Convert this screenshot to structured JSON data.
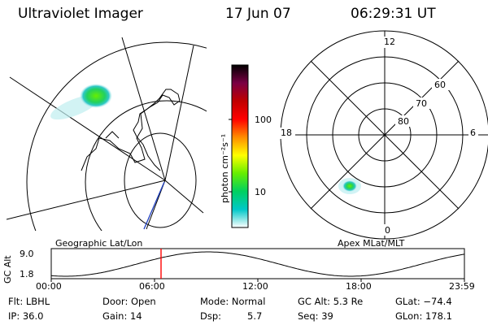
{
  "header": {
    "instrument": "Ultraviolet Imager",
    "date": "17 Jun 07",
    "time": "06:29:31 UT"
  },
  "left_panel": {
    "label": "Geographic Lat/Lon"
  },
  "right_panel": {
    "label": "Apex MLat/MLT",
    "mlt_labels": {
      "top": "12",
      "left": "18",
      "right": "6",
      "bottom": "0"
    },
    "lat_labels": [
      "60",
      "70",
      "80"
    ]
  },
  "colorbar": {
    "unit_label": "photon cm⁻²s⁻¹",
    "tick_labels": [
      "100",
      "10"
    ],
    "colors": [
      "#ffffff",
      "#00c8c8",
      "#00d060",
      "#66ee00",
      "#ffff00",
      "#ff8c00",
      "#ff0000",
      "#c00000",
      "#7a0044",
      "#000000"
    ]
  },
  "orbit": {
    "axis_label": "GC Alt",
    "y_labels": [
      "9.0",
      "1.8"
    ],
    "time_ticks": [
      "00:00",
      "06:00",
      "12:00",
      "18:00",
      "23:59"
    ],
    "marker_color": "#ff0000"
  },
  "info": {
    "filter": "Flt: LBHL",
    "door": "Door: Open",
    "mode": "Mode: Normal",
    "gc_alt": "GC Alt: 5.3 Re",
    "glat": "GLat: −74.4",
    "ip": "IP: 36.0",
    "gain": "Gain: 14",
    "dsp_label": "Dsp:",
    "dsp_value": "5.7",
    "seq": "Seq: 39",
    "glon": "GLon: 178.1"
  }
}
